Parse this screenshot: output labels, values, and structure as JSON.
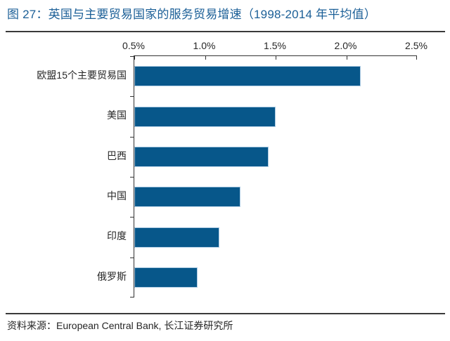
{
  "figure": {
    "title": "图 27：英国与主要贸易国家的服务贸易增速（1998-2014 年平均值）",
    "source": "资料来源：European Central Bank, 长江证券研究所"
  },
  "chart_data": {
    "type": "bar",
    "orientation": "horizontal",
    "title": "图 27：英国与主要贸易国家的服务贸易增速（1998-2014 年平均值）",
    "categories": [
      "欧盟15个主要贸易国",
      "美国",
      "巴西",
      "中国",
      "印度",
      "俄罗斯"
    ],
    "values": [
      2.1,
      1.5,
      1.45,
      1.25,
      1.1,
      0.95
    ],
    "unit": "%",
    "xlabel": "",
    "ylabel": "",
    "xlim": [
      0.5,
      2.5
    ],
    "x_ticks": [
      0.5,
      1.0,
      1.5,
      2.0,
      2.5
    ],
    "x_tick_labels": [
      "0.5%",
      "1.0%",
      "1.5%",
      "2.0%",
      "2.5%"
    ],
    "value_axis_position": "top",
    "grid": false,
    "legend": false,
    "source": "资料来源：European Central Bank, 长江证券研究所",
    "colors": {
      "bar_fill": "#07578A",
      "bar_border": "#AECCE4",
      "title": "#1B5F97",
      "axis": "#333333",
      "text": "#262626"
    }
  }
}
